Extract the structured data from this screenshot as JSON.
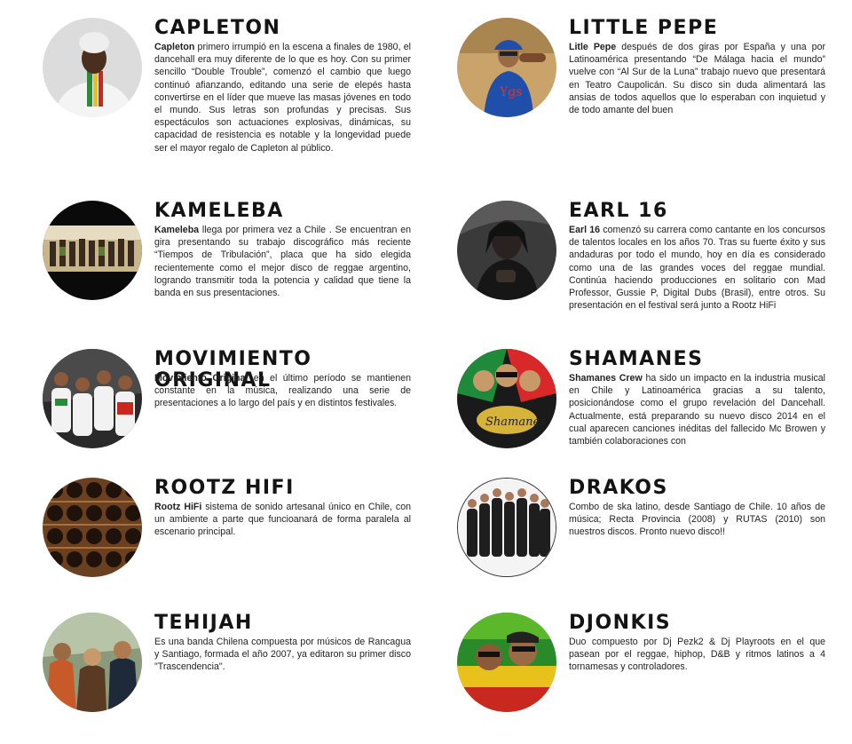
{
  "artists": [
    {
      "name": "CAPLETON",
      "lead": "Capleton",
      "text": " primero irrumpió en la escena a finales de 1980, el dancehall era muy diferente de lo que es hoy. Con su primer sencillo “Double Trouble”, comenzó el cambio que luego continuó afianzando, editando una serie de elepés hasta convertirse en el líder que mueve las masas jóvenes en todo el mundo. Sus letras son profundas y precisas. Sus espectáculos son actuaciones explosivas, dinámicas, su capacidad de resistencia es notable y la longevidad puede ser el mayor regalo de Capleton al público."
    },
    {
      "name": "LITTLE PEPE",
      "lead": "Litle Pepe",
      "text": " después de dos giras por España y una por Latinoamérica presentando “De Málaga hacia el mundo” vuelve con “Al Sur de la Luna” trabajo nuevo que presentará en Teatro Caupolicán. Su disco sin duda alimentará las ansias de todos aquellos que lo esperaban con inquietud y de todo amante del buen"
    },
    {
      "name": "KAMELEBA",
      "lead": "Kameleba",
      "text": " llega por primera vez a Chile . Se encuentran en gira presentando su trabajo discográfico más reciente “Tiempos de Tribulación”, placa que ha sido elegida recientemente como el mejor disco de reggae argentino, logrando transmitir toda la potencia y calidad que tiene la banda en sus presentaciones."
    },
    {
      "name": "EARL 16",
      "lead": "Earl 16",
      "text": " comenzó su carrera como cantante en los concursos de talentos locales en los años 70. Tras su fuerte éxito y sus andaduras por todo el mundo, hoy en día es considerado como una de las grandes voces del reggae mundial. Continúa haciendo producciones en solitario con Mad Professor, Gussie P, Digital Dubs (Brasil), entre otros. Su presentación en el festival será junto a Rootz HiFi"
    },
    {
      "name": "MOVIMIENTO ORIGINAL",
      "lead": "Movimiento Original",
      "text": " en el último período se mantienen constante en la música, realizando una serie de presentaciones a lo largo del país y en distintos festivales."
    },
    {
      "name": "SHAMANES",
      "lead": "Shamanes Crew",
      "text": " ha sido un impacto en la industria musical en Chile y Latinoamérica gracias a su talento, posicionándose como el grupo revelación del Dancehall. Actualmente, está preparando su nuevo disco 2014 en el cual aparecen canciones inéditas del fallecido Mc Browen y también colaboraciones con"
    },
    {
      "name": "ROOTZ HIFI",
      "lead": "Rootz HiFi",
      "text": " sistema de sonido artesanal único en Chile, con un ambiente a parte que funcioanará de forma paralela al escenario principal."
    },
    {
      "name": "DRAKOS",
      "lead": "",
      "text": "Combo de ska latino, desde Santiago de Chile. 10 años de música; Recta Provincia (2008) y RUTAS (2010) son nuestros discos. Pronto nuevo disco!!"
    },
    {
      "name": "TEHIJAH",
      "lead": "",
      "text": "Es una banda Chilena compuesta por músicos de Rancagua y Santiago, formada el año 2007, ya editaron su primer disco \"Trascendencia\"."
    },
    {
      "name": "DJONKIS",
      "lead": "",
      "text": "Duo compuesto por Dj Pezk2 & Dj Playroots en el que pasean por el reggae, hiphop, D&B y ritmos latinos a 4 tornamesas y controladores."
    }
  ]
}
